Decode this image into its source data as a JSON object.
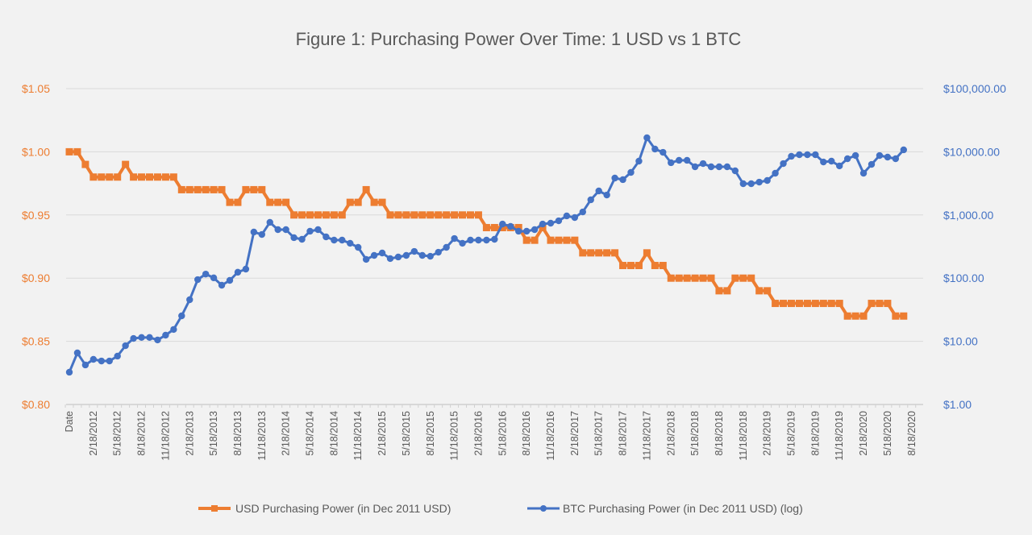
{
  "chart_data": {
    "type": "line",
    "title": "Figure 1: Purchasing Power Over Time: 1 USD vs 1 BTC",
    "x_tick_labels": [
      "Date",
      "2/18/2012",
      "5/18/2012",
      "8/18/2012",
      "11/18/2012",
      "2/18/2013",
      "5/18/2013",
      "8/18/2013",
      "11/18/2013",
      "2/18/2014",
      "5/18/2014",
      "8/18/2014",
      "11/18/2014",
      "2/18/2015",
      "5/18/2015",
      "8/18/2015",
      "11/18/2015",
      "2/18/2016",
      "5/18/2016",
      "8/18/2016",
      "11/18/2016",
      "2/18/2017",
      "5/18/2017",
      "8/18/2017",
      "11/18/2017",
      "2/18/2018",
      "5/18/2018",
      "8/18/2018",
      "11/18/2018",
      "2/18/2019",
      "5/18/2019",
      "8/18/2019",
      "11/18/2019",
      "2/18/2020",
      "5/18/2020",
      "8/18/2020"
    ],
    "x_tick_every": 3,
    "left_axis": {
      "range": [
        0.8,
        1.05
      ],
      "ticks": [
        "$0.80",
        "$0.85",
        "$0.90",
        "$0.95",
        "$1.00",
        "$1.05"
      ],
      "color": "#ed7d31"
    },
    "right_axis": {
      "scale": "log",
      "range": [
        1,
        100000
      ],
      "ticks": [
        "$1.00",
        "$10.00",
        "$100.00",
        "$1,000.00",
        "$10,000.00",
        "$100,000.00"
      ],
      "color": "#4472c4"
    },
    "grid": true,
    "legend_position": "bottom",
    "series": [
      {
        "name": "USD Purchasing Power (in Dec 2011 USD)",
        "axis": "left",
        "color": "#ed7d31",
        "marker": "square",
        "values": [
          1.0,
          1.0,
          0.99,
          0.98,
          0.98,
          0.98,
          0.98,
          0.99,
          0.98,
          0.98,
          0.98,
          0.98,
          0.98,
          0.98,
          0.97,
          0.97,
          0.97,
          0.97,
          0.97,
          0.97,
          0.96,
          0.96,
          0.97,
          0.97,
          0.97,
          0.96,
          0.96,
          0.96,
          0.95,
          0.95,
          0.95,
          0.95,
          0.95,
          0.95,
          0.95,
          0.96,
          0.96,
          0.97,
          0.96,
          0.96,
          0.95,
          0.95,
          0.95,
          0.95,
          0.95,
          0.95,
          0.95,
          0.95,
          0.95,
          0.95,
          0.95,
          0.95,
          0.94,
          0.94,
          0.94,
          0.94,
          0.94,
          0.93,
          0.93,
          0.94,
          0.93,
          0.93,
          0.93,
          0.93,
          0.92,
          0.92,
          0.92,
          0.92,
          0.92,
          0.91,
          0.91,
          0.91,
          0.92,
          0.91,
          0.91,
          0.9,
          0.9,
          0.9,
          0.9,
          0.9,
          0.9,
          0.89,
          0.89,
          0.9,
          0.9,
          0.9,
          0.89,
          0.89,
          0.88,
          0.88,
          0.88,
          0.88,
          0.88,
          0.88,
          0.88,
          0.88,
          0.88,
          0.87,
          0.87,
          0.87,
          0.88,
          0.88,
          0.88,
          0.87,
          0.87
        ]
      },
      {
        "name": "BTC Purchasing Power (in Dec 2011 USD) (log)",
        "axis": "right",
        "color": "#4472c4",
        "marker": "circle",
        "values": [
          3.24,
          6.55,
          4.22,
          5.18,
          4.88,
          4.88,
          5.83,
          8.53,
          11.1,
          11.5,
          11.5,
          10.5,
          12.5,
          15.4,
          25.3,
          45.5,
          94.8,
          116,
          101,
          77.2,
          92.1,
          124,
          139,
          537,
          491,
          764,
          586,
          586,
          437,
          412,
          553,
          586,
          450,
          400,
          400,
          356,
          307,
          198,
          229,
          250,
          204,
          216,
          229,
          265,
          229,
          222,
          257,
          307,
          424,
          356,
          400,
          400,
          400,
          412,
          719,
          659,
          553,
          553,
          586,
          719,
          741,
          809,
          966,
          910,
          1117,
          1738,
          2399,
          2070,
          3838,
          3622,
          4714,
          7112,
          16670,
          11050,
          9820,
          6710,
          7330,
          7330,
          5790,
          6510,
          5790,
          5790,
          5790,
          5000,
          3125,
          3125,
          3313,
          3515,
          4580,
          6510,
          8490,
          8995,
          8995,
          8995,
          6900,
          7112,
          5970,
          7770,
          8730,
          4580,
          6320,
          8730,
          8240,
          7770,
          10740
        ]
      }
    ]
  }
}
